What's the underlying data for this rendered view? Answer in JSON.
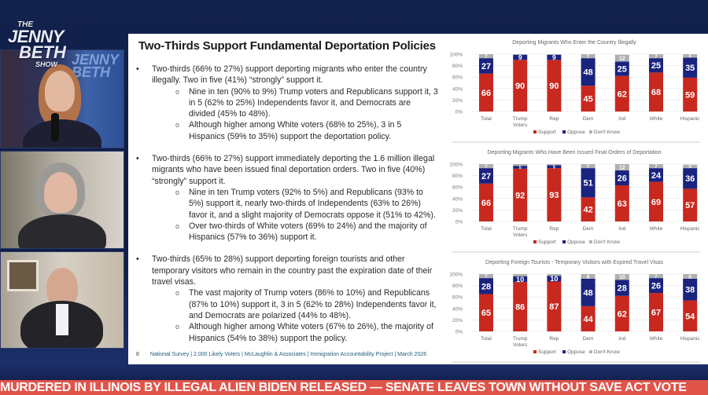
{
  "show": {
    "logo_text": "THE JENNY BETH SHOW"
  },
  "slide": {
    "title": "Two-Thirds Support Fundamental Deportation Policies",
    "bullets": [
      {
        "text": "Two-thirds (66% to 27%) support deporting migrants who enter the country illegally. Two in five (41%) “strongly” support it.",
        "subs": [
          "Nine in ten (90% to 9%) Trump voters and Republicans support it, 3 in 5 (62% to 25%) Independents favor it, and Democrats are divided (45% to 48%).",
          "Although higher among White voters (68% to 25%), 3 in 5 Hispanics (59% to 35%) support the deportation policy."
        ]
      },
      {
        "text": "Two-thirds (66% to 27%) support immediately deporting the 1.6 million illegal migrants who have been issued final deportation orders. Two in five (40%) “strongly” support it.",
        "subs": [
          "Nine in ten Trump voters (92% to 5%) and Republicans (93% to 5%) support it, nearly two-thirds of Independents (63% to 26%) favor it, and a slight majority of Democrats oppose it (51% to 42%).",
          "Over two-thirds of White voters (69% to 24%) and the majority of Hispanics (57% to 36%) support it."
        ]
      },
      {
        "text": "Two-thirds (65% to 28%) support deporting foreign tourists and other temporary visitors who remain in the country past the expiration date of their travel visas.",
        "subs": [
          "The vast majority of Trump voters (86% to 10%) and Republicans (87% to 10%) support it, 3 in 5 (62% to 28%) Independents favor it, and Democrats are polarized (44% to 48%).",
          "Although higher among White voters (67% to 26%), the majority of Hispanics (54% to 38%) support the policy."
        ]
      }
    ],
    "page_number": "8",
    "footer": "National Survey | 2,000 Likely Voters | McLaughlin & Associates | Immigration Accountability Project | March 2026"
  },
  "chart_data": [
    {
      "type": "bar",
      "stacked": true,
      "title": "Deporting Migrants Who Enter the Country Illegally",
      "categories": [
        "Total",
        "Trump Voters",
        "Rep",
        "Dem",
        "Ind",
        "White",
        "Hispanic"
      ],
      "series": [
        {
          "name": "Support",
          "color": "#c8281e",
          "values": [
            66,
            90,
            90,
            45,
            62,
            68,
            59
          ]
        },
        {
          "name": "Oppose",
          "color": "#1a237e",
          "values": [
            27,
            9,
            9,
            48,
            25,
            25,
            35
          ]
        },
        {
          "name": "Don't Know",
          "color": "#b0b0b0",
          "values": [
            7,
            1,
            1,
            7,
            12,
            7,
            6
          ]
        }
      ],
      "yticks": [
        "0%",
        "20%",
        "40%",
        "60%",
        "80%",
        "100%"
      ],
      "ylim": [
        0,
        100
      ],
      "legend": "bottom",
      "grid": true
    },
    {
      "type": "bar",
      "stacked": true,
      "title": "Deporting Migrants Who Have Been Issued Final Orders of Deportation",
      "categories": [
        "Total",
        "Trump Voters",
        "Rep",
        "Dem",
        "Ind",
        "White",
        "Hispanic"
      ],
      "series": [
        {
          "name": "Support",
          "color": "#c8281e",
          "values": [
            66,
            92,
            93,
            42,
            63,
            69,
            57
          ]
        },
        {
          "name": "Oppose",
          "color": "#1a237e",
          "values": [
            27,
            5,
            5,
            51,
            26,
            24,
            36
          ]
        },
        {
          "name": "Don't Know",
          "color": "#b0b0b0",
          "values": [
            7,
            3,
            2,
            7,
            12,
            7,
            6
          ]
        }
      ],
      "yticks": [
        "0%",
        "20%",
        "40%",
        "60%",
        "80%",
        "100%"
      ],
      "ylim": [
        0,
        100
      ],
      "legend": "bottom",
      "grid": true
    },
    {
      "type": "bar",
      "stacked": true,
      "title": "Deporting Foreign Tourists - Temporary Visitors with Expired Travel Visas",
      "categories": [
        "Total",
        "Trump Voters",
        "Rep",
        "Dem",
        "Ind",
        "White",
        "Hispanic"
      ],
      "series": [
        {
          "name": "Support",
          "color": "#c8281e",
          "values": [
            65,
            86,
            87,
            44,
            62,
            67,
            54
          ]
        },
        {
          "name": "Oppose",
          "color": "#1a237e",
          "values": [
            28,
            10,
            10,
            48,
            28,
            26,
            38
          ]
        },
        {
          "name": "Don't Know",
          "color": "#b0b0b0",
          "values": [
            7,
            4,
            3,
            8,
            10,
            7,
            8
          ]
        }
      ],
      "yticks": [
        "0%",
        "20%",
        "40%",
        "60%",
        "80%",
        "100%"
      ],
      "ylim": [
        0,
        100
      ],
      "legend": "bottom",
      "grid": true
    }
  ],
  "ticker": {
    "text": "MURDERED IN ILLINOIS BY ILLEGAL ALIEN BIDEN RELEASED — SENATE LEAVES TOWN WITHOUT SAVE ACT VOTE"
  }
}
